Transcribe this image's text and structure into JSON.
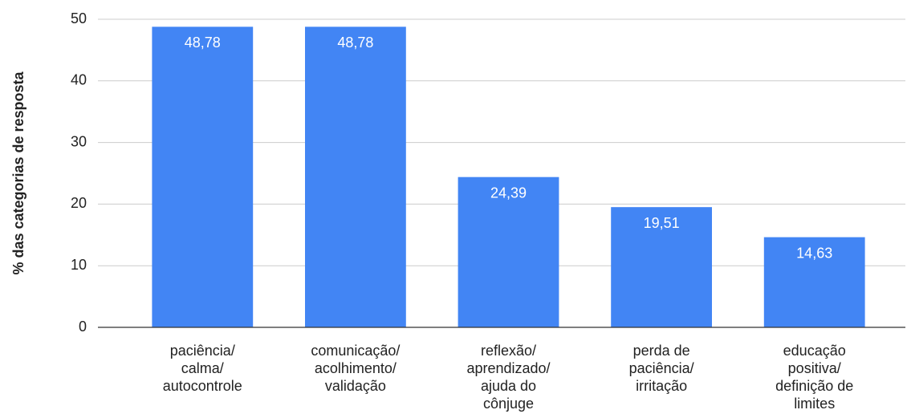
{
  "chart_data": {
    "type": "bar",
    "y_label": "% das categorias de resposta",
    "categories": [
      [
        "paciência/",
        "calma/",
        "autocontrole"
      ],
      [
        "comunicação/",
        "acolhimento/",
        "validação"
      ],
      [
        "reflexão/",
        "aprendizado/",
        "ajuda do",
        "cônjuge"
      ],
      [
        "perda de",
        "paciência/",
        "irritação"
      ],
      [
        "educação",
        "positiva/",
        "definição de",
        "limites"
      ]
    ],
    "values": [
      48.78,
      48.78,
      24.39,
      19.51,
      14.63
    ],
    "value_labels": [
      "48,78",
      "48,78",
      "24,39",
      "19,51",
      "14,63"
    ],
    "color": "#4285f4",
    "ylim": [
      0,
      50
    ],
    "yticks": [
      0,
      10,
      20,
      30,
      40,
      50
    ],
    "grid": true
  }
}
